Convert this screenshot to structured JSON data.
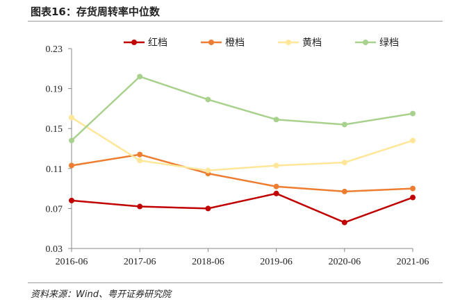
{
  "title": "图表16：存货周转率中位数",
  "source": "资料来源：Wind、粤开证券研究院",
  "chart_data": {
    "type": "line",
    "title": "存货周转率中位数",
    "xlabel": "",
    "ylabel": "",
    "categories": [
      "2016-06",
      "2017-06",
      "2018-06",
      "2019-06",
      "2020-06",
      "2021-06"
    ],
    "ylim": [
      0.03,
      0.23
    ],
    "yticks": [
      "0.03",
      "0.07",
      "0.11",
      "0.15",
      "0.19",
      "0.23"
    ],
    "grid": false,
    "legend_position": "top",
    "series": [
      {
        "name": "红档",
        "color": "#C00000",
        "values": [
          0.078,
          0.072,
          0.07,
          0.085,
          0.056,
          0.081
        ]
      },
      {
        "name": "橙档",
        "color": "#ED7D31",
        "values": [
          0.113,
          0.124,
          0.105,
          0.092,
          0.087,
          0.09
        ]
      },
      {
        "name": "黄档",
        "color": "#FFE699",
        "values": [
          0.161,
          0.118,
          0.108,
          0.113,
          0.116,
          0.138
        ]
      },
      {
        "name": "绿档",
        "color": "#A9D18E",
        "values": [
          0.138,
          0.202,
          0.179,
          0.159,
          0.154,
          0.165
        ]
      }
    ]
  }
}
